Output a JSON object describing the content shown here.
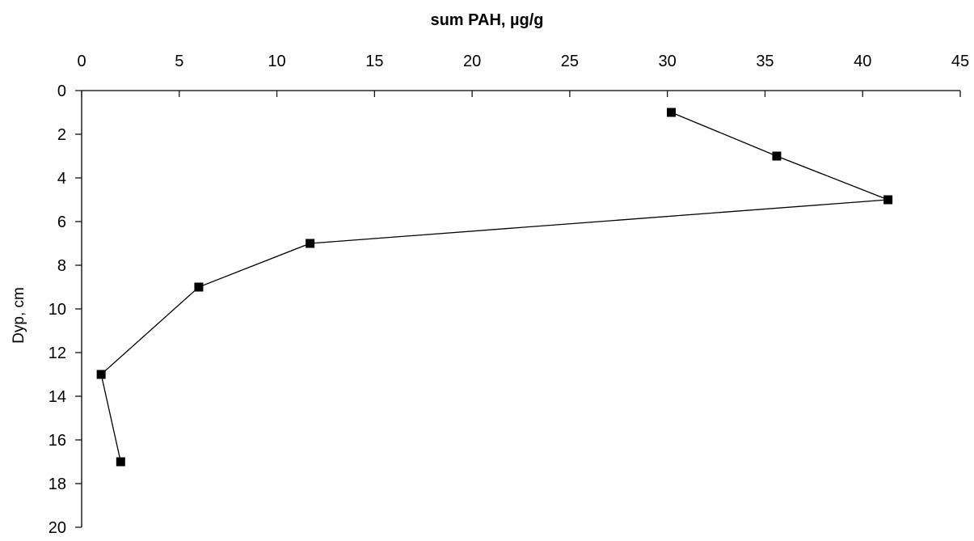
{
  "chart_data": {
    "type": "line",
    "xlabel": "sum PAH, µg/g",
    "ylabel": "Dyp, cm",
    "xlim": [
      0,
      45
    ],
    "ylim": [
      0,
      20
    ],
    "x_axis_position": "top",
    "y_axis_inverted": true,
    "grid": false,
    "x_ticks": [
      "0",
      "5",
      "10",
      "15",
      "20",
      "25",
      "30",
      "35",
      "40",
      "45"
    ],
    "y_ticks": [
      "0",
      "2",
      "4",
      "6",
      "8",
      "10",
      "12",
      "14",
      "16",
      "18",
      "20"
    ],
    "series": [
      {
        "marker": "square",
        "color": "#000000",
        "points": [
          {
            "x": 30.2,
            "y": 1
          },
          {
            "x": 35.6,
            "y": 3
          },
          {
            "x": 41.3,
            "y": 5
          },
          {
            "x": 11.7,
            "y": 7
          },
          {
            "x": 6.0,
            "y": 9
          },
          {
            "x": 1.0,
            "y": 13
          },
          {
            "x": 2.0,
            "y": 17
          }
        ]
      }
    ]
  }
}
